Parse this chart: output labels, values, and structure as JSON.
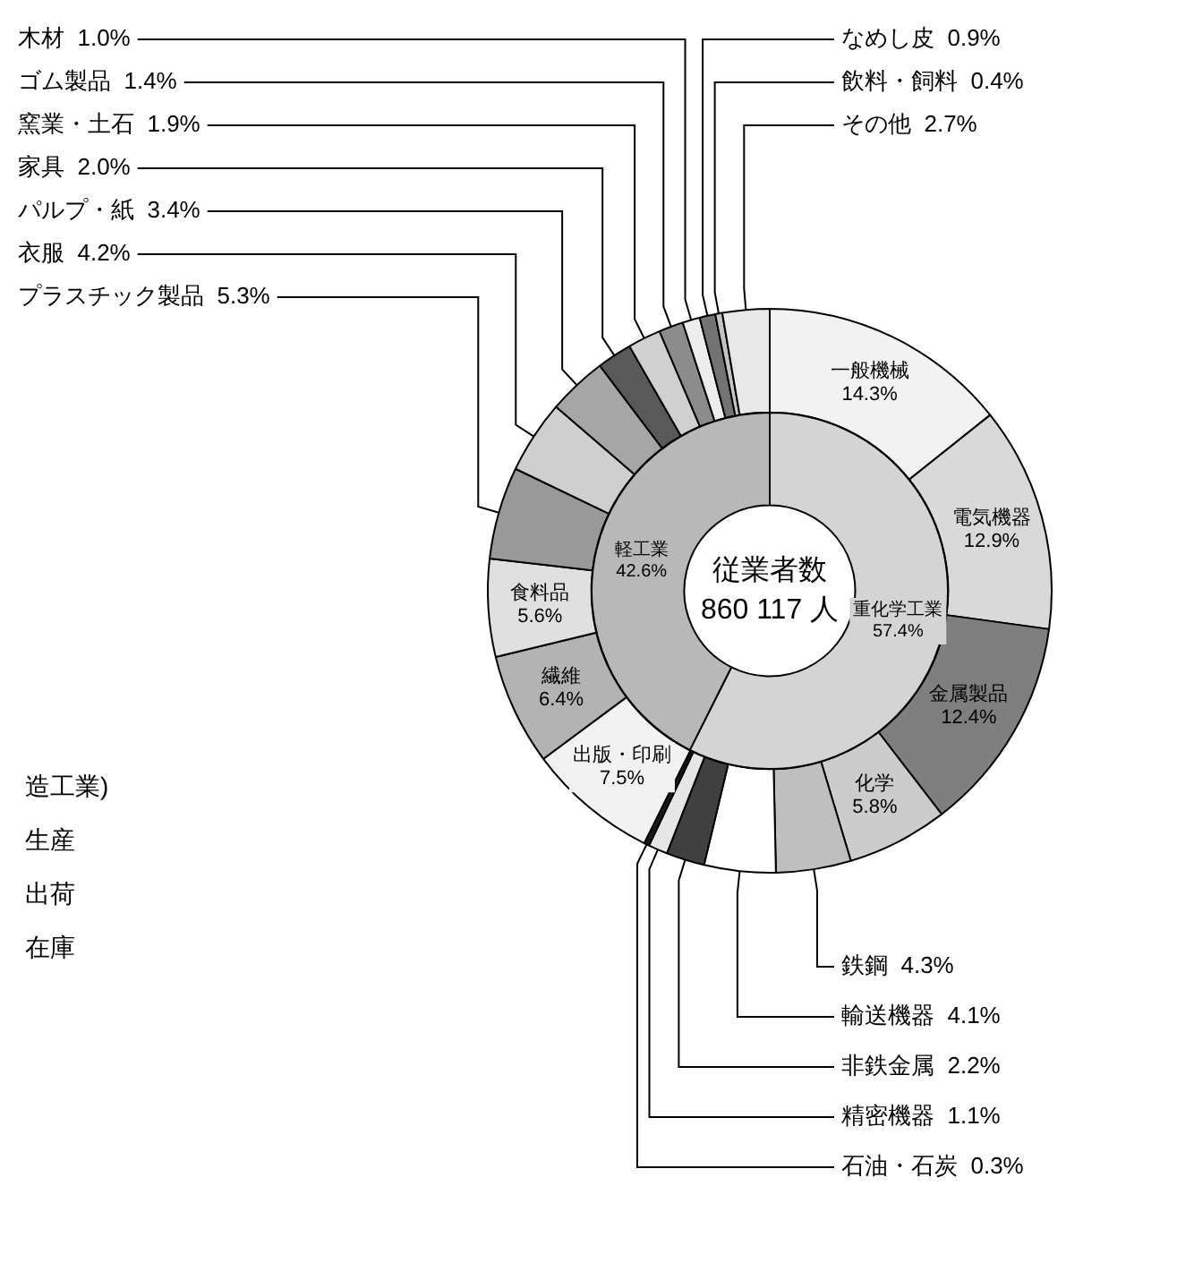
{
  "chart_data": [
    {
      "type": "donut",
      "categories": [
        "一般機械",
        "電気機器",
        "金属製品",
        "化学",
        "鉄鋼",
        "輸送機器",
        "非鉄金属",
        "精密機器",
        "石油・石炭",
        "出版・印刷",
        "繊維",
        "食料品",
        "プラスチック製品",
        "衣服",
        "パルプ・紙",
        "家具",
        "窯業・土石",
        "ゴム製品",
        "木材",
        "なめし皮",
        "飲料・飼料",
        "その他"
      ],
      "values": [
        14.3,
        12.9,
        12.4,
        5.8,
        4.3,
        4.1,
        2.2,
        1.1,
        0.3,
        7.5,
        6.4,
        5.6,
        5.3,
        4.2,
        3.4,
        2.0,
        1.9,
        1.4,
        1.0,
        0.9,
        0.4,
        2.7
      ],
      "value_labels": [
        "14.3%",
        "12.9%",
        "12.4%",
        "5.8%",
        "4.3%",
        "4.1%",
        "2.2%",
        "1.1%",
        "0.3%",
        "7.5%",
        "6.4%",
        "5.6%",
        "5.3%",
        "4.2%",
        "3.4%",
        "2.0%",
        "1.9%",
        "1.4%",
        "1.0%",
        "0.9%",
        "0.4%",
        "2.7%"
      ],
      "colors": [
        "#f2f2f2",
        "#d9d9d9",
        "#7f7f7f",
        "#cccccc",
        "#bfbfbf",
        "#ffffff",
        "#404040",
        "#e6e6e6",
        "#1a1a1a",
        "#f2f2f2",
        "#b3b3b3",
        "#e0e0e0",
        "#999999",
        "#cfcfcf",
        "#a6a6a6",
        "#595959",
        "#d0d0d0",
        "#8c8c8c",
        "#ededed",
        "#737373",
        "#c4c4c4",
        "#e8e8e8"
      ],
      "annotations": [
        "造工業)",
        "生産",
        "出荷",
        "在庫"
      ]
    },
    {
      "type": "donut",
      "title": "従業者数",
      "subtitle": "860 117 人",
      "categories": [
        "重化学工業",
        "軽工業"
      ],
      "values": [
        57.4,
        42.6
      ],
      "value_labels": [
        "57.4%",
        "42.6%"
      ],
      "colors": [
        "#d4d4d4",
        "#b8b8b8"
      ]
    }
  ]
}
